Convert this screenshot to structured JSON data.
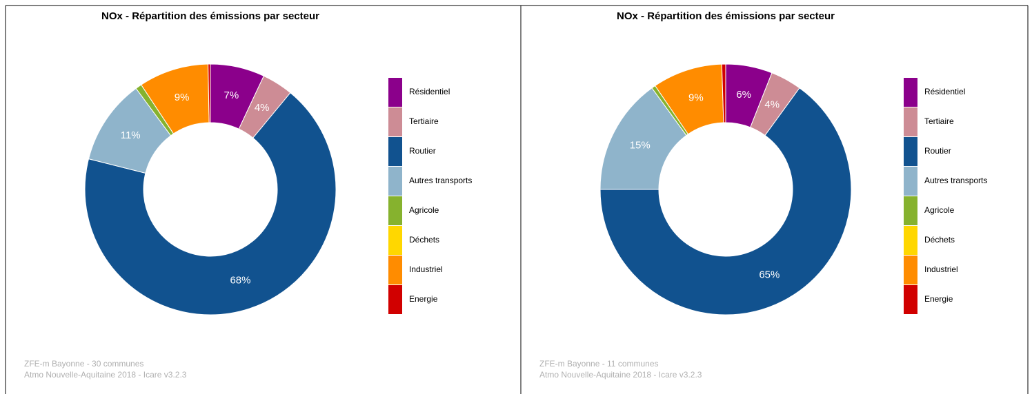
{
  "chart_data": [
    {
      "type": "donut",
      "title": "NOx - Répartition des émissions par secteur",
      "categories": [
        "Résidentiel",
        "Tertiaire",
        "Routier",
        "Autres transports",
        "Agricole",
        "Déchets",
        "Industriel",
        "Energie"
      ],
      "values": [
        7,
        4,
        68,
        11,
        0.8,
        0,
        9,
        0.3
      ],
      "value_labels": [
        "7%",
        "4%",
        "68%",
        "11%",
        null,
        null,
        "9%",
        null
      ],
      "colors": [
        "#8b008b",
        "#cd8c95",
        "#11528f",
        "#8fb4cb",
        "#86b22e",
        "#ffd700",
        "#ff8c00",
        "#d10000"
      ],
      "notes": [
        "ZFE-m Bayonne - 30 communes",
        "Atmo Nouvelle-Aquitaine 2018 - Icare v3.2.3"
      ]
    },
    {
      "type": "donut",
      "title": "NOx - Répartition des émissions par secteur",
      "categories": [
        "Résidentiel",
        "Tertiaire",
        "Routier",
        "Autres transports",
        "Agricole",
        "Déchets",
        "Industriel",
        "Energie"
      ],
      "values": [
        6,
        4,
        65,
        15,
        0.5,
        0,
        9,
        0.5
      ],
      "value_labels": [
        "6%",
        "4%",
        "65%",
        "15%",
        null,
        null,
        "9%",
        null
      ],
      "colors": [
        "#8b008b",
        "#cd8c95",
        "#11528f",
        "#8fb4cb",
        "#86b22e",
        "#ffd700",
        "#ff8c00",
        "#d10000"
      ],
      "notes": [
        "ZFE-m Bayonne - 11 communes",
        "Atmo Nouvelle-Aquitaine 2018 - Icare v3.2.3"
      ]
    }
  ]
}
